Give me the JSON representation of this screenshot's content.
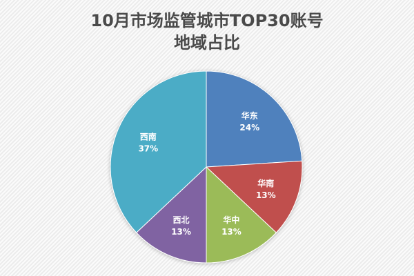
{
  "chart_data": {
    "type": "pie",
    "title": "10月市场监管城市TOP30账号地域占比",
    "title_lines": [
      "10月市场监管城市TOP30账号",
      "地域占比"
    ],
    "categories": [
      "华东",
      "华南",
      "华中",
      "西北",
      "西南"
    ],
    "values": [
      24,
      13,
      13,
      13,
      37
    ],
    "labels": [
      "24%",
      "13%",
      "13%",
      "13%",
      "37%"
    ],
    "colors": [
      "#4F81BD",
      "#C0504D",
      "#9BBB59",
      "#8064A2",
      "#4BACC6"
    ],
    "start_angle": "12 o'clock, clockwise",
    "legend": "none (data labels on slices)"
  }
}
